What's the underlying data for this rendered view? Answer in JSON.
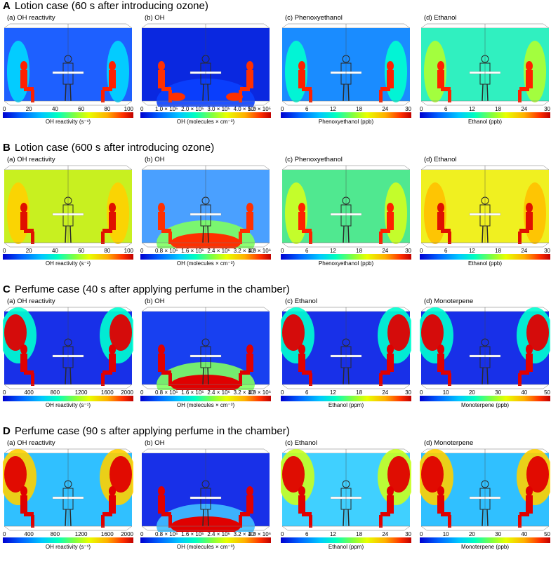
{
  "sections": [
    {
      "letter": "A",
      "title": "Lotion case (60 s after introducing ozone)",
      "panels": [
        {
          "label": "(a) OH reactivity",
          "ticks": [
            "0",
            "20",
            "40",
            "60",
            "80",
            "100"
          ],
          "unit": "OH reactivity (s⁻¹)"
        },
        {
          "label": "(b) OH",
          "ticks": [
            "0",
            "1.0 × 10⁵",
            "2.0 × 10⁵",
            "3.0 × 10⁵",
            "4.0 × 10⁵",
            "5.0 × 10⁵"
          ],
          "unit": "OH (molecules × cm⁻³)"
        },
        {
          "label": "(c) Phenoxyethanol",
          "ticks": [
            "0",
            "6",
            "12",
            "18",
            "24",
            "30"
          ],
          "unit": "Phenoxyethanol (ppb)"
        },
        {
          "label": "(d) Ethanol",
          "ticks": [
            "0",
            "6",
            "12",
            "18",
            "24",
            "30"
          ],
          "unit": "Ethanol (ppb)"
        }
      ]
    },
    {
      "letter": "B",
      "title": "Lotion case (600 s after introducing ozone)",
      "panels": [
        {
          "label": "(a) OH reactivity",
          "ticks": [
            "0",
            "20",
            "40",
            "60",
            "80",
            "100"
          ],
          "unit": "OH reactivity (s⁻¹)"
        },
        {
          "label": "(b) OH",
          "ticks": [
            "0",
            "0.8 × 10⁶",
            "1.6 × 10⁶",
            "2.4 × 10⁶",
            "3.2 × 10⁶",
            "4.0 × 10⁶"
          ],
          "unit": "OH (molecules × cm⁻³)"
        },
        {
          "label": "(c) Phenoxyethanol",
          "ticks": [
            "0",
            "6",
            "12",
            "18",
            "24",
            "30"
          ],
          "unit": "Phenoxyethanol (ppb)"
        },
        {
          "label": "(d) Ethanol",
          "ticks": [
            "0",
            "6",
            "12",
            "18",
            "24",
            "30"
          ],
          "unit": "Ethanol (ppb)"
        }
      ]
    },
    {
      "letter": "C",
      "title": "Perfume case (40 s after applying perfume in the chamber)",
      "panels": [
        {
          "label": "(a) OH reactivity",
          "ticks": [
            "0",
            "400",
            "800",
            "1200",
            "1600",
            "2000"
          ],
          "unit": "OH reactivity (s⁻¹)"
        },
        {
          "label": "(b) OH",
          "ticks": [
            "0",
            "0.8 × 10⁶",
            "1.6 × 10⁶",
            "2.4 × 10⁶",
            "3.2 × 10⁶",
            "4.0 × 10⁶"
          ],
          "unit": "OH (molecules × cm⁻³)"
        },
        {
          "label": "(c) Ethanol",
          "ticks": [
            "0",
            "6",
            "12",
            "18",
            "24",
            "30"
          ],
          "unit": "Ethanol (ppm)"
        },
        {
          "label": "(d) Monoterpene",
          "ticks": [
            "0",
            "10",
            "20",
            "30",
            "40",
            "50"
          ],
          "unit": "Monoterpene (ppb)"
        }
      ]
    },
    {
      "letter": "D",
      "title": "Perfume case (90 s after applying perfume in the chamber)",
      "panels": [
        {
          "label": "(a) OH reactivity",
          "ticks": [
            "0",
            "400",
            "800",
            "1200",
            "1600",
            "2000"
          ],
          "unit": "OH reactivity (s⁻¹)"
        },
        {
          "label": "(b) OH",
          "ticks": [
            "0",
            "0.8 × 10⁶",
            "1.6 × 10⁶",
            "2.4 × 10⁶",
            "3.2 × 10⁶",
            "4.0 × 10⁶"
          ],
          "unit": "OH (molecules × cm⁻³)"
        },
        {
          "label": "(c) Ethanol",
          "ticks": [
            "0",
            "6",
            "12",
            "18",
            "24",
            "30"
          ],
          "unit": "Ethanol (ppm)"
        },
        {
          "label": "(d) Monoterpene",
          "ticks": [
            "0",
            "10",
            "20",
            "30",
            "40",
            "50"
          ],
          "unit": "Monoterpene (ppb)"
        }
      ]
    }
  ],
  "colors": {
    "low": "#0000d0",
    "mid": "#00ffc0",
    "high": "#c00000",
    "figure": "#2a2a2a"
  }
}
